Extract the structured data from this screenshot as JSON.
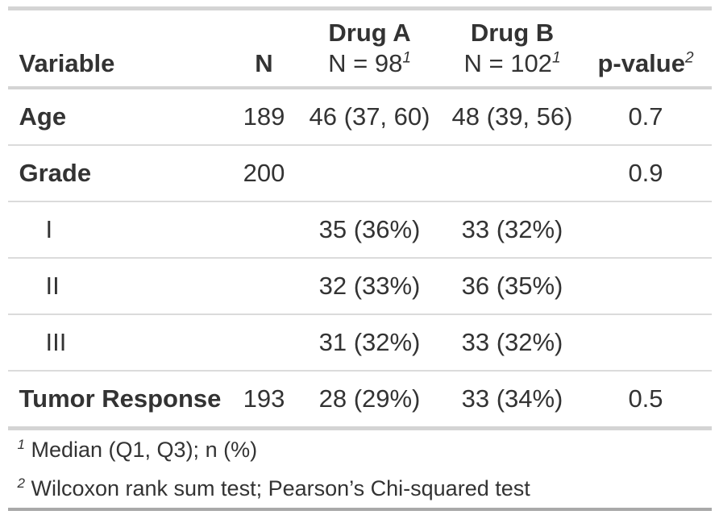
{
  "table": {
    "header": {
      "variable_label": "Variable",
      "n_label": "N",
      "drug_a": {
        "line1": "Drug A",
        "line2": "N = 98",
        "footnote_mark": "1"
      },
      "drug_b": {
        "line1": "Drug B",
        "line2": "N = 102",
        "footnote_mark": "1"
      },
      "p_value": {
        "label": "p-value",
        "footnote_mark": "2"
      }
    },
    "rows": [
      {
        "label": "Age",
        "n": "189",
        "drug_a": "46 (37, 60)",
        "drug_b": "48 (39, 56)",
        "p": "0.7"
      },
      {
        "label": "Grade",
        "n": "200",
        "drug_a": "",
        "drug_b": "",
        "p": "0.9"
      },
      {
        "label": "I",
        "n": "",
        "drug_a": "35 (36%)",
        "drug_b": "33 (32%)",
        "p": ""
      },
      {
        "label": "II",
        "n": "",
        "drug_a": "32 (33%)",
        "drug_b": "36 (35%)",
        "p": ""
      },
      {
        "label": "III",
        "n": "",
        "drug_a": "31 (32%)",
        "drug_b": "33 (32%)",
        "p": ""
      },
      {
        "label": "Tumor Response",
        "n": "193",
        "drug_a": "28 (29%)",
        "drug_b": "33 (34%)",
        "p": "0.5"
      }
    ],
    "footnotes": [
      {
        "mark": "1",
        "text": "Median (Q1, Q3); n (%)"
      },
      {
        "mark": "2",
        "text": "Wilcoxon rank sum test; Pearson’s Chi-squared test"
      }
    ],
    "colors": {
      "text": "#333333",
      "rule_light": "#d4d4d4",
      "rule_thin": "#dbdbdb",
      "rule_bottom_dark": "#a9a9a9"
    }
  }
}
